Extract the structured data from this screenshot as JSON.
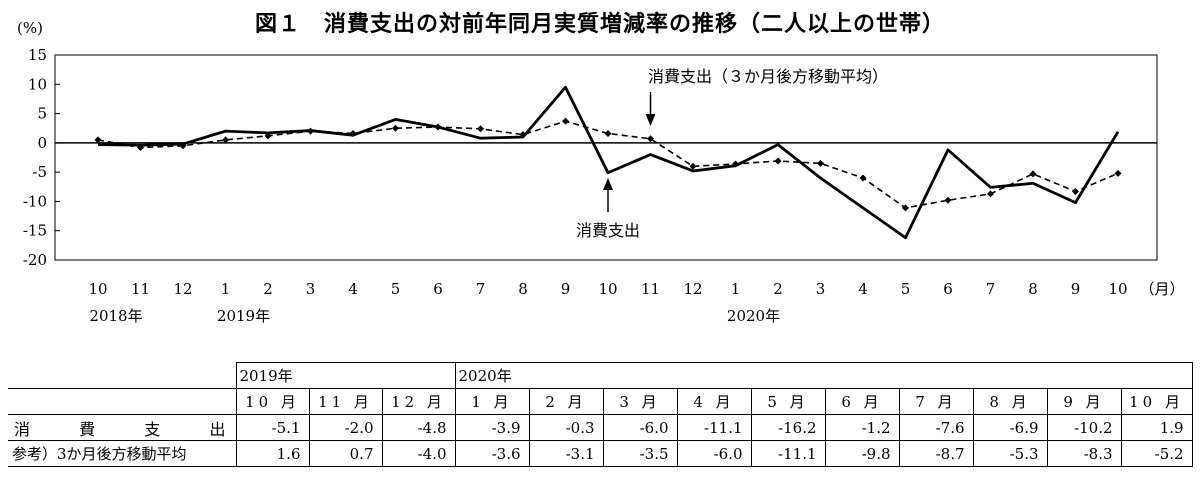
{
  "title": "図１　消費支出の対前年同月実質増減率の推移（二人以上の世帯）",
  "chart_data": {
    "type": "line",
    "y_unit_label": "(%)",
    "x_unit_label": "（月）",
    "ylim": [
      -20,
      15
    ],
    "yticks": [
      "15",
      "10",
      "5",
      "0",
      "-5",
      "-10",
      "-15",
      "-20"
    ],
    "categories": [
      "10",
      "11",
      "12",
      "1",
      "2",
      "3",
      "4",
      "5",
      "6",
      "7",
      "8",
      "9",
      "10",
      "11",
      "12",
      "1",
      "2",
      "3",
      "4",
      "5",
      "6",
      "7",
      "8",
      "9",
      "10"
    ],
    "year_labels": [
      {
        "label": "2018年",
        "index": 0
      },
      {
        "label": "2019年",
        "index": 3
      },
      {
        "label": "2020年",
        "index": 15
      }
    ],
    "series": [
      {
        "name": "消費支出",
        "style": "solid",
        "values": [
          -0.3,
          -0.4,
          -0.2,
          2.0,
          1.7,
          2.1,
          1.3,
          4.0,
          2.7,
          0.8,
          1.0,
          9.5,
          -5.1,
          -2.0,
          -4.8,
          -3.9,
          -0.3,
          -6.0,
          -11.1,
          -16.2,
          -1.2,
          -7.6,
          -6.9,
          -10.2,
          1.9
        ]
      },
      {
        "name": "消費支出（３か月後方移動平均）",
        "style": "dashed",
        "values": [
          0.5,
          -0.8,
          -0.5,
          0.5,
          1.2,
          2.0,
          1.6,
          2.5,
          2.7,
          2.4,
          1.4,
          3.7,
          1.6,
          0.7,
          -4.0,
          -3.6,
          -3.1,
          -3.5,
          -6.0,
          -11.1,
          -9.8,
          -8.7,
          -5.3,
          -8.3,
          -5.2
        ]
      }
    ],
    "annotations": [
      {
        "text": "消費支出（３か月後方移動平均）",
        "target_index": 13,
        "arrow": "down"
      },
      {
        "text": "消費支出",
        "target_index": 12,
        "arrow": "up"
      }
    ],
    "grid": false
  },
  "table": {
    "year_headers": [
      "2019年",
      "2020年"
    ],
    "months": [
      "10 月",
      "11 月",
      "12 月",
      "1 月",
      "2 月",
      "3 月",
      "4 月",
      "5 月",
      "6 月",
      "7 月",
      "8 月",
      "9 月",
      "10 月"
    ],
    "rows": [
      {
        "label": "消費支出",
        "values": [
          "-5.1",
          "-2.0",
          "-4.8",
          "-3.9",
          "-0.3",
          "-6.0",
          "-11.1",
          "-16.2",
          "-1.2",
          "-7.6",
          "-6.9",
          "-10.2",
          "1.9"
        ]
      },
      {
        "label": "参考）3か月後方移動平均",
        "values": [
          "1.6",
          "0.7",
          "-4.0",
          "-3.6",
          "-3.1",
          "-3.5",
          "-6.0",
          "-11.1",
          "-9.8",
          "-8.7",
          "-5.3",
          "-8.3",
          "-5.2"
        ]
      }
    ]
  }
}
